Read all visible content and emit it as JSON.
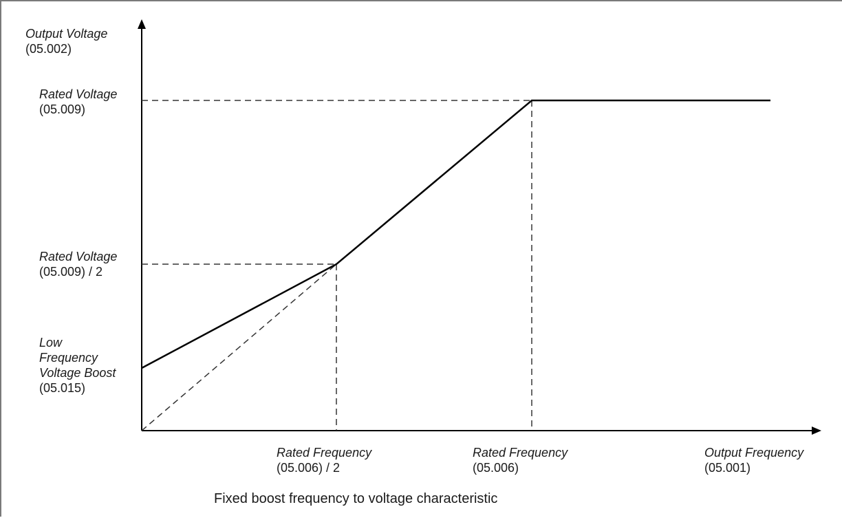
{
  "caption": "Fixed boost frequency to voltage characteristic",
  "y_axis": {
    "title_line1": "Output Voltage",
    "title_line2": "(05.002)",
    "labels": {
      "rated_voltage_line1": "Rated Voltage",
      "rated_voltage_line2": "(05.009)",
      "half_voltage_line1": "Rated Voltage",
      "half_voltage_line2": "(05.009) / 2",
      "boost_line1": "Low",
      "boost_line2": "Frequency",
      "boost_line3": "Voltage Boost",
      "boost_line4": "(05.015)"
    }
  },
  "x_axis": {
    "labels": {
      "half_freq_line1": "Rated Frequency",
      "half_freq_line2": "(05.006) / 2",
      "rated_freq_line1": "Rated Frequency",
      "rated_freq_line2": "(05.006)",
      "output_freq_line1": "Output Frequency",
      "output_freq_line2": "(05.001)"
    }
  },
  "colors": {
    "line": "#000000",
    "dashed": "#333333",
    "border": "#7a7a7a"
  }
}
